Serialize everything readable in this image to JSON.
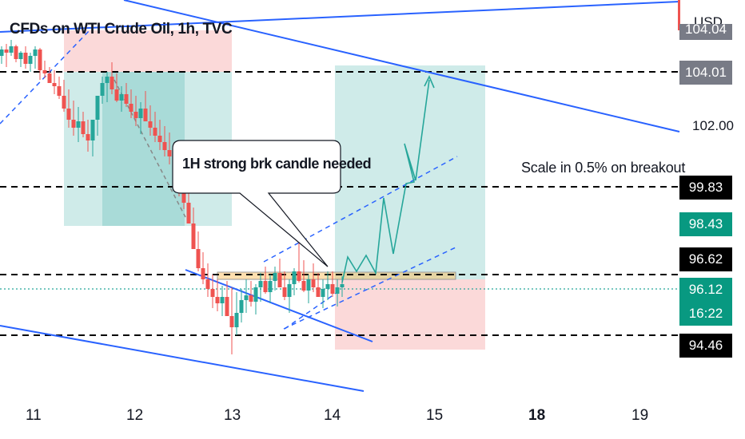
{
  "title": "CFDs on WTI Crude Oil, 1h, TVC",
  "currency": "USD",
  "price_scale": {
    "top_partial": "104.04",
    "tag_104": "104.01",
    "level_102": "102.00",
    "tag_9983": "99.83",
    "tag_9843": "98.43",
    "tag_9662": "96.62",
    "tag_9612": "96.12",
    "countdown": "16:22",
    "tag_9446": "94.46"
  },
  "dates": [
    "11",
    "12",
    "13",
    "14",
    "15",
    "18",
    "19"
  ],
  "annotations": {
    "bubble": "1H strong brk candle needed",
    "note": "Scale in 0.5% on breakout"
  },
  "colors": {
    "up": "#26a69a",
    "down": "#ef5350",
    "trendline": "#2962ff",
    "profit_zone": "rgba(38,166,154,0.22)",
    "loss_zone": "rgba(239,83,80,0.22)",
    "tag_black": "#000000",
    "tag_green": "#089981",
    "tag_gray": "#787b86"
  }
}
